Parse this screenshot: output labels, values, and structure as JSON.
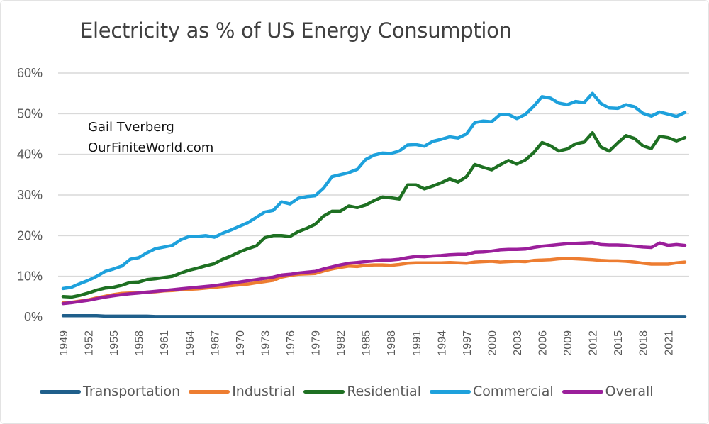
{
  "chart_data": {
    "type": "line",
    "title": "Electricity as % of US Energy Consumption",
    "xlabel": "",
    "ylabel": "",
    "ylim": [
      0,
      60
    ],
    "yticks": [
      "0%",
      "10%",
      "20%",
      "30%",
      "40%",
      "50%",
      "60%"
    ],
    "ytick_values": [
      0,
      10,
      20,
      30,
      40,
      50,
      60
    ],
    "grid": true,
    "legend_position": "bottom",
    "annotations": [
      "Gail Tverberg",
      "OurFiniteWorld.com"
    ],
    "x": [
      1949,
      1950,
      1951,
      1952,
      1953,
      1954,
      1955,
      1956,
      1957,
      1958,
      1959,
      1960,
      1961,
      1962,
      1963,
      1964,
      1965,
      1966,
      1967,
      1968,
      1969,
      1970,
      1971,
      1972,
      1973,
      1974,
      1975,
      1976,
      1977,
      1978,
      1979,
      1980,
      1981,
      1982,
      1983,
      1984,
      1985,
      1986,
      1987,
      1988,
      1989,
      1990,
      1991,
      1992,
      1993,
      1994,
      1995,
      1996,
      1997,
      1998,
      1999,
      2000,
      2001,
      2002,
      2003,
      2004,
      2005,
      2006,
      2007,
      2008,
      2009,
      2010,
      2011,
      2012,
      2013,
      2014,
      2015,
      2016,
      2017,
      2018,
      2019,
      2020,
      2021,
      2022,
      2023
    ],
    "xtick_labels": [
      "1949",
      "1952",
      "1955",
      "1958",
      "1961",
      "1964",
      "1967",
      "1970",
      "1973",
      "1976",
      "1979",
      "1982",
      "1985",
      "1988",
      "1991",
      "1994",
      "1997",
      "2000",
      "2003",
      "2006",
      "2009",
      "2012",
      "2015",
      "2018",
      "2021"
    ],
    "series": [
      {
        "name": "Transportation",
        "color": "#1f5f8b",
        "values": [
          0.3,
          0.3,
          0.3,
          0.3,
          0.3,
          0.2,
          0.2,
          0.2,
          0.2,
          0.2,
          0.2,
          0.1,
          0.1,
          0.1,
          0.1,
          0.1,
          0.1,
          0.1,
          0.1,
          0.1,
          0.1,
          0.1,
          0.1,
          0.1,
          0.1,
          0.1,
          0.1,
          0.1,
          0.1,
          0.1,
          0.1,
          0.1,
          0.1,
          0.1,
          0.1,
          0.1,
          0.1,
          0.1,
          0.1,
          0.1,
          0.1,
          0.1,
          0.1,
          0.1,
          0.1,
          0.1,
          0.1,
          0.1,
          0.1,
          0.1,
          0.1,
          0.1,
          0.1,
          0.1,
          0.1,
          0.1,
          0.1,
          0.1,
          0.1,
          0.1,
          0.1,
          0.1,
          0.1,
          0.1,
          0.1,
          0.1,
          0.1,
          0.1,
          0.1,
          0.1,
          0.1,
          0.1,
          0.1,
          0.1,
          0.1
        ]
      },
      {
        "name": "Industrial",
        "color": "#ed7d31",
        "values": [
          3.5,
          3.6,
          3.9,
          4.2,
          4.7,
          5.1,
          5.5,
          5.8,
          5.9,
          6.0,
          6.1,
          6.2,
          6.4,
          6.5,
          6.7,
          6.8,
          6.9,
          7.1,
          7.3,
          7.5,
          7.7,
          7.9,
          8.1,
          8.4,
          8.7,
          9.0,
          9.8,
          10.2,
          10.5,
          10.6,
          10.7,
          11.3,
          11.8,
          12.2,
          12.5,
          12.4,
          12.7,
          12.8,
          12.8,
          12.7,
          12.9,
          13.2,
          13.3,
          13.3,
          13.3,
          13.3,
          13.4,
          13.3,
          13.2,
          13.5,
          13.6,
          13.7,
          13.5,
          13.6,
          13.7,
          13.6,
          13.9,
          14.0,
          14.1,
          14.3,
          14.4,
          14.3,
          14.2,
          14.1,
          13.9,
          13.8,
          13.8,
          13.7,
          13.5,
          13.2,
          13.0,
          13.0,
          13.0,
          13.3,
          13.5
        ]
      },
      {
        "name": "Residential",
        "color": "#1e7022",
        "values": [
          5.0,
          4.9,
          5.3,
          5.9,
          6.6,
          7.1,
          7.3,
          7.8,
          8.5,
          8.6,
          9.2,
          9.4,
          9.7,
          10.0,
          10.8,
          11.5,
          12.0,
          12.6,
          13.1,
          14.2,
          15.0,
          16.0,
          16.8,
          17.5,
          19.5,
          20.0,
          20.0,
          19.8,
          21.0,
          21.8,
          22.8,
          24.8,
          26.0,
          26.0,
          27.3,
          26.9,
          27.5,
          28.6,
          29.5,
          29.3,
          29.0,
          32.5,
          32.5,
          31.5,
          32.2,
          33.0,
          34.0,
          33.2,
          34.5,
          37.5,
          36.8,
          36.2,
          37.4,
          38.5,
          37.6,
          38.6,
          40.4,
          42.9,
          42.1,
          40.8,
          41.3,
          42.6,
          43.0,
          45.3,
          41.8,
          40.8,
          42.8,
          44.6,
          43.9,
          42.1,
          41.4,
          44.4,
          44.1,
          43.3,
          44.1
        ]
      },
      {
        "name": "Commercial",
        "color": "#1ea1dc",
        "values": [
          7.0,
          7.3,
          8.2,
          9.0,
          10.0,
          11.2,
          11.8,
          12.5,
          14.2,
          14.6,
          15.8,
          16.8,
          17.2,
          17.6,
          19.0,
          19.8,
          19.8,
          20.0,
          19.6,
          20.6,
          21.4,
          22.3,
          23.2,
          24.5,
          25.8,
          26.2,
          28.3,
          27.8,
          29.2,
          29.6,
          29.8,
          31.7,
          34.5,
          35.0,
          35.5,
          36.3,
          38.7,
          39.8,
          40.3,
          40.2,
          40.8,
          42.3,
          42.4,
          42.0,
          43.2,
          43.7,
          44.3,
          44.0,
          45.0,
          47.8,
          48.2,
          48.0,
          49.8,
          49.8,
          48.8,
          49.8,
          51.8,
          54.2,
          53.8,
          52.6,
          52.2,
          53.0,
          52.7,
          55.0,
          52.5,
          51.4,
          51.3,
          52.2,
          51.7,
          50.1,
          49.4,
          50.4,
          49.9,
          49.3,
          50.3
        ]
      },
      {
        "name": "Overall",
        "color": "#9b1f9b",
        "values": [
          3.3,
          3.5,
          3.8,
          4.1,
          4.5,
          4.9,
          5.2,
          5.5,
          5.7,
          5.9,
          6.1,
          6.3,
          6.5,
          6.7,
          6.9,
          7.1,
          7.3,
          7.5,
          7.7,
          8.0,
          8.3,
          8.6,
          8.9,
          9.2,
          9.5,
          9.8,
          10.3,
          10.5,
          10.8,
          11.0,
          11.2,
          11.8,
          12.3,
          12.8,
          13.2,
          13.4,
          13.6,
          13.8,
          14.0,
          14.0,
          14.2,
          14.6,
          14.9,
          14.8,
          15.0,
          15.1,
          15.3,
          15.4,
          15.4,
          15.9,
          16.0,
          16.2,
          16.5,
          16.6,
          16.6,
          16.7,
          17.1,
          17.4,
          17.6,
          17.8,
          18.0,
          18.1,
          18.2,
          18.3,
          17.8,
          17.7,
          17.7,
          17.6,
          17.4,
          17.2,
          17.1,
          18.2,
          17.6,
          17.8,
          17.6
        ]
      }
    ]
  }
}
